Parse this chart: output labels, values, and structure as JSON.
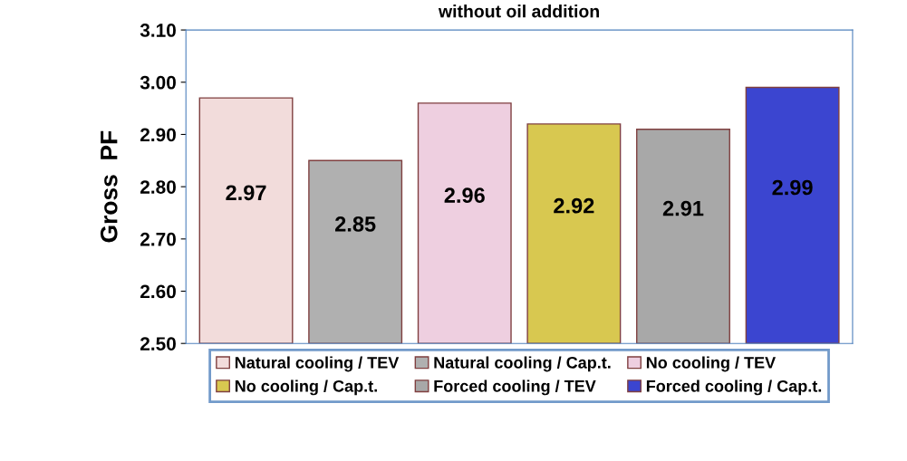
{
  "chart_data": {
    "type": "bar",
    "title": "without oil addition",
    "ylabel": "Gross  PF",
    "categories": [
      null,
      null,
      null,
      null,
      null,
      null
    ],
    "series": [
      {
        "name": "Natural cooling / TEV",
        "color": "#f2dcdb",
        "values": [
          2.97,
          null,
          null,
          null,
          null,
          null
        ]
      },
      {
        "name": "Natural cooling / Cap.t.",
        "color": "#b0b0b0",
        "values": [
          null,
          2.85,
          null,
          null,
          null,
          null
        ]
      },
      {
        "name": "No cooling / TEV",
        "color": "#eecfe0",
        "values": [
          null,
          null,
          2.96,
          null,
          null,
          null
        ]
      },
      {
        "name": "No cooling / Cap.t.",
        "color": "#d8c850",
        "values": [
          null,
          null,
          null,
          2.92,
          null,
          null
        ]
      },
      {
        "name": "Forced cooling / TEV",
        "color": "#a8a8a8",
        "values": [
          null,
          null,
          null,
          null,
          2.91,
          null
        ]
      },
      {
        "name": "Forced cooling / Cap.t.",
        "color": "#3b45d0",
        "values": [
          null,
          null,
          null,
          null,
          null,
          2.99
        ]
      }
    ],
    "ylim": [
      2.5,
      3.1
    ],
    "yticks": [
      {
        "value": 2.5,
        "label": "2.50"
      },
      {
        "value": 2.6,
        "label": "2.60"
      },
      {
        "value": 2.7,
        "label": "2.70"
      },
      {
        "value": 2.8,
        "label": "2.80"
      },
      {
        "value": 2.9,
        "label": "2.90"
      },
      {
        "value": 3.0,
        "label": "3.00"
      },
      {
        "value": 3.1,
        "label": "3.10"
      }
    ],
    "data_labels": true,
    "grid": false,
    "legend": "bottom"
  }
}
